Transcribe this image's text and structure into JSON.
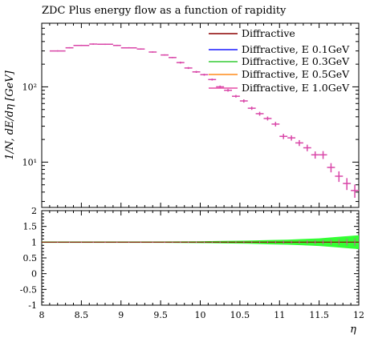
{
  "chart_data": [
    {
      "type": "scatter",
      "title": "ZDC Plus energy flow as a function of rapidity",
      "ylabel": "1/N, dE/dη [GeV]",
      "xlabel": "",
      "xlim": [
        8,
        12
      ],
      "ylim": [
        2.5,
        700
      ],
      "yscale": "log",
      "y_tick_labels": [
        "10¹",
        "10²"
      ],
      "y_tick_values": [
        10,
        100
      ],
      "legend_position": "top-right",
      "legend": [
        {
          "label": "Diffractive",
          "color": "#8b0000"
        },
        {
          "label": "Diffractive, E 0.1GeV",
          "color": "#1a1aff"
        },
        {
          "label": "Diffractive, E 0.3GeV",
          "color": "#33cc33"
        },
        {
          "label": "Diffractive, E 0.5GeV",
          "color": "#ff8c1a"
        },
        {
          "label": "Diffractive, E 1.0GeV",
          "color": "#e64ca6"
        }
      ],
      "marker_color": "#d946a8",
      "x": [
        8.2,
        8.35,
        8.5,
        8.65,
        8.8,
        8.95,
        9.1,
        9.25,
        9.4,
        9.55,
        9.65,
        9.75,
        9.85,
        9.95,
        10.05,
        10.15,
        10.25,
        10.35,
        10.45,
        10.55,
        10.65,
        10.75,
        10.85,
        10.95,
        11.05,
        11.15,
        11.25,
        11.35,
        11.45,
        11.55,
        11.65,
        11.75,
        11.85,
        11.95
      ],
      "x_halfwidth": [
        0.1,
        0.05,
        0.1,
        0.05,
        0.1,
        0.05,
        0.1,
        0.05,
        0.05,
        0.05,
        0.05,
        0.05,
        0.05,
        0.05,
        0.05,
        0.05,
        0.05,
        0.05,
        0.05,
        0.05,
        0.05,
        0.05,
        0.05,
        0.05,
        0.05,
        0.05,
        0.05,
        0.05,
        0.05,
        0.05,
        0.05,
        0.05,
        0.05,
        0.05
      ],
      "y": [
        300,
        330,
        355,
        370,
        368,
        355,
        330,
        318,
        290,
        265,
        245,
        210,
        178,
        158,
        145,
        125,
        100,
        90,
        75,
        65,
        52,
        44,
        38,
        32,
        22,
        21,
        18,
        15.5,
        12.5,
        12.5,
        8.5,
        6.5,
        5.2,
        4.2
      ],
      "y_err": [
        0.02,
        0.02,
        0.02,
        0.02,
        0.02,
        0.02,
        0.02,
        0.02,
        0.02,
        0.02,
        0.02,
        0.03,
        0.03,
        0.03,
        0.03,
        0.03,
        0.04,
        0.04,
        0.04,
        0.05,
        0.05,
        0.06,
        0.06,
        0.07,
        0.08,
        0.08,
        0.09,
        0.1,
        0.11,
        0.12,
        0.14,
        0.16,
        0.18,
        0.2
      ]
    },
    {
      "type": "area",
      "title": "",
      "xlabel": "η",
      "ylabel": "",
      "xlim": [
        8,
        12
      ],
      "ylim": [
        -1,
        2
      ],
      "x_tick_labels": [
        "8",
        "8.5",
        "9",
        "9.5",
        "10",
        "10.5",
        "11",
        "11.5",
        "12"
      ],
      "x_tick_values": [
        8,
        8.5,
        9,
        9.5,
        10,
        10.5,
        11,
        11.5,
        12
      ],
      "y_tick_labels": [
        "-1",
        "-0.5",
        "0",
        "0.5",
        "1",
        "1.5",
        "2"
      ],
      "y_tick_values": [
        -1,
        -0.5,
        0,
        0.5,
        1,
        1.5,
        2
      ],
      "ratio_line": 1,
      "band_color": "#33ff33",
      "band_x": [
        8.0,
        8.5,
        9.0,
        9.5,
        10.0,
        10.3,
        10.6,
        10.9,
        11.1,
        11.3,
        11.5,
        11.7,
        11.9,
        12.0
      ],
      "band_halfwidth": [
        0.02,
        0.02,
        0.02,
        0.02,
        0.03,
        0.04,
        0.05,
        0.07,
        0.08,
        0.1,
        0.12,
        0.16,
        0.2,
        0.22
      ]
    }
  ]
}
